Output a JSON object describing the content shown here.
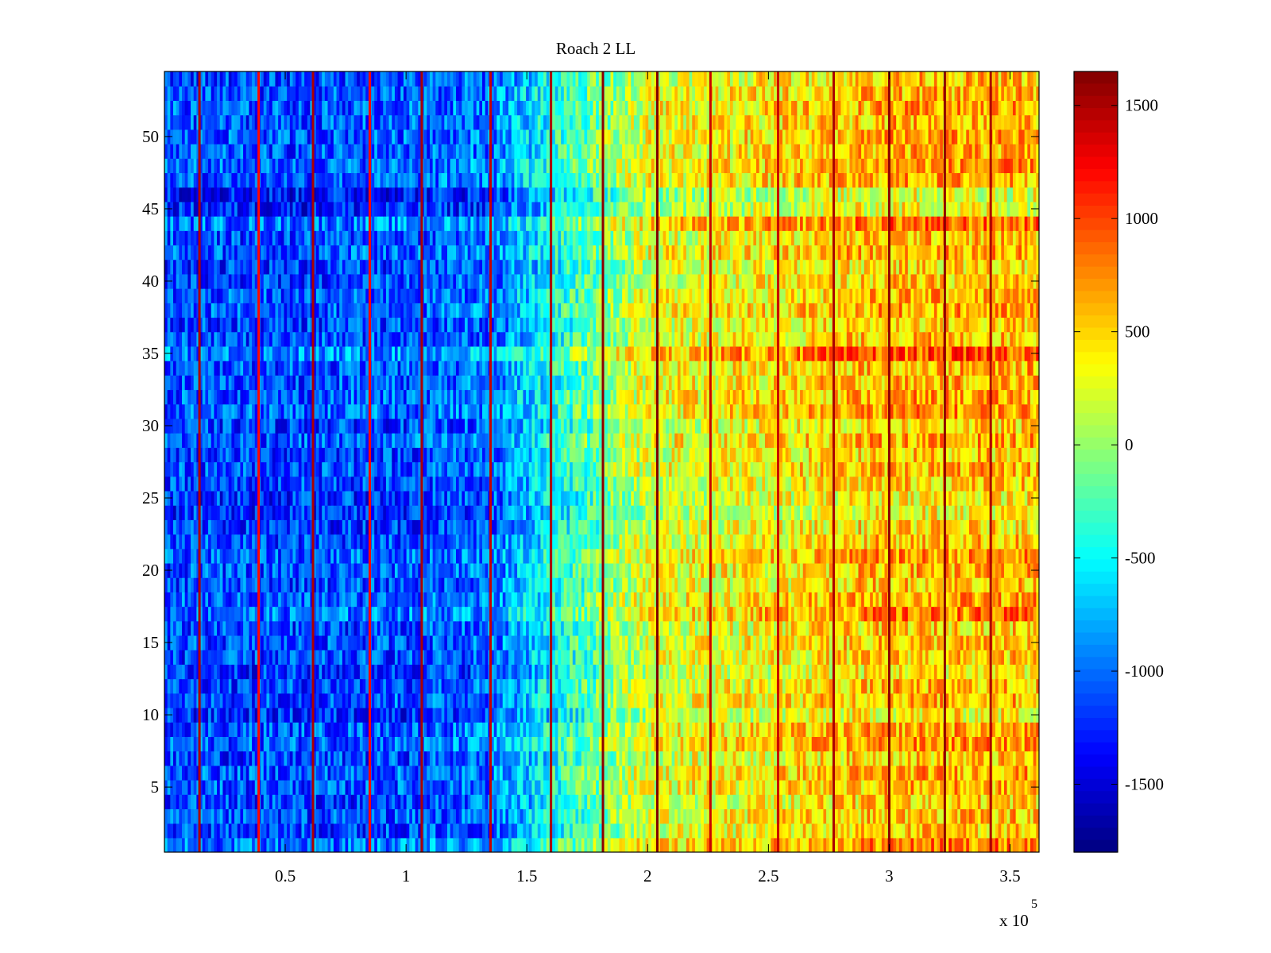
{
  "chart_data": {
    "type": "heatmap",
    "title": "Roach 2 LL",
    "xlabel": "",
    "ylabel": "",
    "x_exponent_label": {
      "base": "x 10",
      "exponent": "5"
    },
    "xlim": [
      0,
      3.62
    ],
    "ylim": [
      0.5,
      54.5
    ],
    "x_ticks": [
      0.5,
      1,
      1.5,
      2,
      2.5,
      3,
      3.5
    ],
    "x_tick_labels": [
      "0.5",
      "1",
      "1.5",
      "2",
      "2.5",
      "3",
      "3.5"
    ],
    "y_ticks": [
      5,
      10,
      15,
      20,
      25,
      30,
      35,
      40,
      45,
      50
    ],
    "y_tick_labels": [
      "5",
      "10",
      "15",
      "20",
      "25",
      "30",
      "35",
      "40",
      "45",
      "50"
    ],
    "rows": 54,
    "colormap": "jet",
    "clim": [
      -1800,
      1650
    ],
    "colorbar_ticks": [
      1500,
      1000,
      500,
      0,
      -500,
      -1000,
      -1500
    ],
    "colorbar_tick_labels": [
      "1500",
      "1000",
      "500",
      "0",
      "-500",
      "-1000",
      "-1500"
    ],
    "column_profile": {
      "x": [
        0.0,
        0.5,
        1.0,
        1.35,
        1.5,
        1.7,
        2.0,
        2.5,
        3.0,
        3.62
      ],
      "value": [
        -1050,
        -1050,
        -1000,
        -900,
        -600,
        -200,
        350,
        500,
        700,
        700
      ]
    },
    "row_offsets": {
      "rows": [
        1,
        2,
        3,
        4,
        5,
        6,
        7,
        8,
        9,
        10,
        11,
        12,
        13,
        14,
        15,
        16,
        17,
        18,
        19,
        20,
        21,
        22,
        23,
        24,
        25,
        26,
        27,
        28,
        29,
        30,
        31,
        32,
        33,
        34,
        35,
        36,
        37,
        38,
        39,
        40,
        41,
        42,
        43,
        44,
        45,
        46,
        47,
        48,
        49,
        50,
        51,
        52,
        53,
        54
      ],
      "offset": [
        100,
        -200,
        -150,
        -200,
        -100,
        -50,
        -200,
        0,
        -50,
        -350,
        -100,
        -150,
        -300,
        -200,
        -150,
        -200,
        100,
        -50,
        -150,
        -100,
        0,
        -150,
        -250,
        -350,
        -300,
        -200,
        -100,
        -200,
        -50,
        -250,
        0,
        -50,
        -100,
        -100,
        250,
        -150,
        -200,
        -50,
        -100,
        -200,
        -250,
        -50,
        -150,
        150,
        -400,
        -450,
        -50,
        0,
        -100,
        -50,
        -100,
        -50,
        -100,
        -150
      ]
    },
    "stripes": [
      {
        "x": 0.145,
        "value": 1500
      },
      {
        "x": 0.39,
        "value": 1200
      },
      {
        "x": 0.615,
        "value": 1500
      },
      {
        "x": 0.85,
        "value": 1200
      },
      {
        "x": 1.065,
        "value": 1500
      },
      {
        "x": 1.35,
        "value": 1400
      },
      {
        "x": 1.6,
        "value": 1500
      },
      {
        "x": 1.815,
        "value": 1600
      },
      {
        "x": 2.04,
        "value": 1650
      },
      {
        "x": 2.26,
        "value": 1400
      },
      {
        "x": 2.54,
        "value": 1400
      },
      {
        "x": 2.77,
        "value": 1500
      },
      {
        "x": 3.0,
        "value": 1600
      },
      {
        "x": 3.23,
        "value": 1600
      },
      {
        "x": 3.42,
        "value": 1500
      }
    ]
  }
}
